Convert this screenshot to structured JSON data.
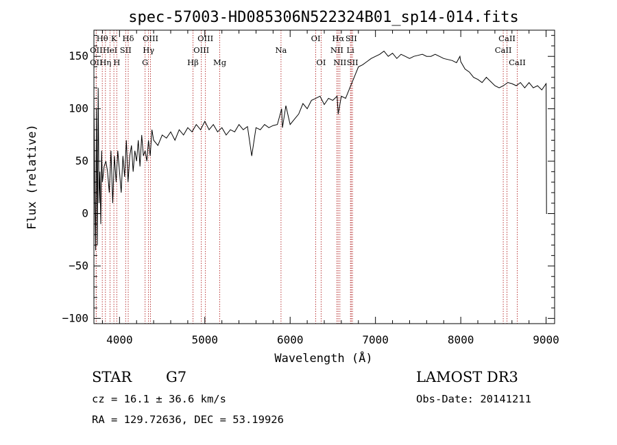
{
  "chart_data": {
    "type": "line",
    "title": "spec-57003-HD085306N522324B01_sp14-014.fits",
    "xlabel": "Wavelength (Å)",
    "ylabel": "Flux (relative)",
    "xlim": [
      3700,
      9100
    ],
    "ylim": [
      -105,
      175
    ],
    "xticks": [
      4000,
      5000,
      6000,
      7000,
      8000,
      9000
    ],
    "yticks": [
      -100,
      -50,
      0,
      50,
      100,
      150
    ],
    "grid": false,
    "series": [
      {
        "name": "flux",
        "x": [
          3700,
          3710,
          3720,
          3730,
          3740,
          3750,
          3760,
          3770,
          3780,
          3790,
          3800,
          3820,
          3840,
          3860,
          3880,
          3900,
          3920,
          3940,
          3960,
          3980,
          4000,
          4020,
          4040,
          4060,
          4080,
          4100,
          4120,
          4140,
          4160,
          4180,
          4200,
          4220,
          4240,
          4260,
          4280,
          4300,
          4320,
          4340,
          4360,
          4380,
          4400,
          4450,
          4500,
          4550,
          4600,
          4650,
          4700,
          4750,
          4800,
          4850,
          4900,
          4950,
          5000,
          5050,
          5100,
          5150,
          5200,
          5250,
          5300,
          5350,
          5400,
          5450,
          5500,
          5550,
          5600,
          5650,
          5700,
          5750,
          5800,
          5850,
          5900,
          5910,
          5950,
          6000,
          6050,
          6100,
          6150,
          6200,
          6250,
          6300,
          6350,
          6400,
          6450,
          6500,
          6550,
          6563,
          6600,
          6650,
          6700,
          6750,
          6800,
          6850,
          6900,
          6950,
          7000,
          7050,
          7100,
          7150,
          7200,
          7250,
          7300,
          7350,
          7400,
          7450,
          7500,
          7550,
          7600,
          7650,
          7700,
          7750,
          7800,
          7850,
          7900,
          7950,
          7990,
          8000,
          8050,
          8100,
          8150,
          8200,
          8250,
          8300,
          8350,
          8400,
          8450,
          8500,
          8550,
          8600,
          8650,
          8700,
          8750,
          8800,
          8850,
          8900,
          8950,
          9000,
          9005,
          9010
        ],
        "y": [
          110,
          20,
          -35,
          100,
          -30,
          120,
          10,
          40,
          -10,
          60,
          30,
          45,
          50,
          40,
          20,
          60,
          10,
          55,
          30,
          60,
          40,
          20,
          55,
          35,
          70,
          30,
          55,
          65,
          40,
          60,
          50,
          70,
          45,
          75,
          55,
          60,
          50,
          70,
          55,
          80,
          70,
          65,
          75,
          72,
          78,
          70,
          80,
          75,
          82,
          78,
          85,
          80,
          88,
          80,
          85,
          78,
          82,
          75,
          80,
          78,
          85,
          80,
          83,
          55,
          82,
          80,
          85,
          82,
          84,
          85,
          100,
          82,
          103,
          85,
          90,
          95,
          105,
          100,
          108,
          110,
          112,
          104,
          110,
          108,
          112,
          95,
          112,
          110,
          120,
          130,
          140,
          142,
          145,
          148,
          150,
          152,
          155,
          150,
          153,
          148,
          152,
          150,
          148,
          150,
          151,
          152,
          150,
          150,
          152,
          150,
          148,
          147,
          146,
          144,
          150,
          145,
          138,
          135,
          130,
          128,
          125,
          130,
          126,
          122,
          120,
          122,
          125,
          124,
          122,
          125,
          120,
          125,
          120,
          122,
          118,
          124,
          0,
          0
        ]
      }
    ],
    "spectral_lines": [
      {
        "name": "OII",
        "wavelength": 3727,
        "row": 3
      },
      {
        "name": "OII",
        "wavelength": 3727,
        "row": 2
      },
      {
        "name": "Hθ",
        "wavelength": 3798,
        "row": 1
      },
      {
        "name": "Hη",
        "wavelength": 3835,
        "row": 3
      },
      {
        "name": "HeI",
        "wavelength": 3889,
        "row": 2
      },
      {
        "name": "K",
        "wavelength": 3934,
        "row": 1
      },
      {
        "name": "H",
        "wavelength": 3968,
        "row": 3
      },
      {
        "name": "SII",
        "wavelength": 4072,
        "row": 2
      },
      {
        "name": "Hδ",
        "wavelength": 4102,
        "row": 1
      },
      {
        "name": "G",
        "wavelength": 4300,
        "row": 3
      },
      {
        "name": "Hγ",
        "wavelength": 4340,
        "row": 2
      },
      {
        "name": "OIII",
        "wavelength": 4363,
        "row": 1
      },
      {
        "name": "Hβ",
        "wavelength": 4861,
        "row": 3
      },
      {
        "name": "OIII",
        "wavelength": 4959,
        "row": 2
      },
      {
        "name": "OIII",
        "wavelength": 5007,
        "row": 1
      },
      {
        "name": "Mg",
        "wavelength": 5175,
        "row": 3
      },
      {
        "name": "Na",
        "wavelength": 5893,
        "row": 2
      },
      {
        "name": "OI",
        "wavelength": 6300,
        "row": 1
      },
      {
        "name": "OI",
        "wavelength": 6363,
        "row": 3
      },
      {
        "name": "NII",
        "wavelength": 6548,
        "row": 2
      },
      {
        "name": "Hα",
        "wavelength": 6563,
        "row": 1
      },
      {
        "name": "NII",
        "wavelength": 6583,
        "row": 3
      },
      {
        "name": "Li",
        "wavelength": 6707,
        "row": 2
      },
      {
        "name": "SII",
        "wavelength": 6716,
        "row": 1
      },
      {
        "name": "SII",
        "wavelength": 6731,
        "row": 3
      },
      {
        "name": "CaII",
        "wavelength": 8498,
        "row": 2
      },
      {
        "name": "CaII",
        "wavelength": 8542,
        "row": 1
      },
      {
        "name": "CaII",
        "wavelength": 8662,
        "row": 3
      }
    ],
    "line_color": "#b22222"
  },
  "info": {
    "object_class": "STAR",
    "subclass": "G7",
    "cz": "cz = 16.1 ± 36.6 km/s",
    "coords": "RA = 129.72636, DEC =  53.19926",
    "survey": "LAMOST DR3",
    "obs_date": "Obs-Date: 20141211"
  }
}
